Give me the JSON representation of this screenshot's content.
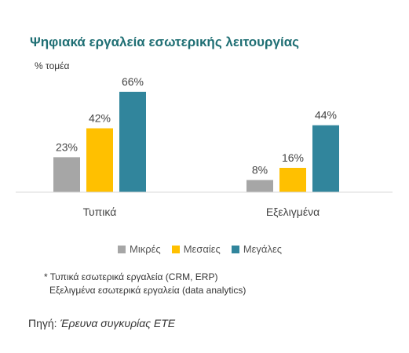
{
  "chart_data": {
    "type": "bar",
    "title": "Ψηφιακά εργαλεία εσωτερικής λειτουργίας",
    "ylabel": "% τομέα",
    "xlabel": "",
    "categories": [
      "Τυπικά",
      "Εξελιγμένα"
    ],
    "series": [
      {
        "name": "Μικρές",
        "values": [
          23,
          8
        ],
        "color": "#a6a6a6"
      },
      {
        "name": "Μεσαίες",
        "values": [
          42,
          16
        ],
        "color": "#ffc000"
      },
      {
        "name": "Μεγάλες",
        "values": [
          66,
          44
        ],
        "color": "#31859c"
      }
    ],
    "value_suffix": "%",
    "ylim": [
      0,
      70
    ],
    "grid": false,
    "legend_position": "bottom"
  },
  "note": {
    "line1": "* Τυπικά εσωτερικά εργαλεία (CRM, ERP)",
    "line2": "Εξελιγμένα εσωτερικά εργαλεία (data analytics)"
  },
  "source": {
    "label": "Πηγή:",
    "name": "Έρευνα συγκυρίας ΕΤΕ"
  }
}
